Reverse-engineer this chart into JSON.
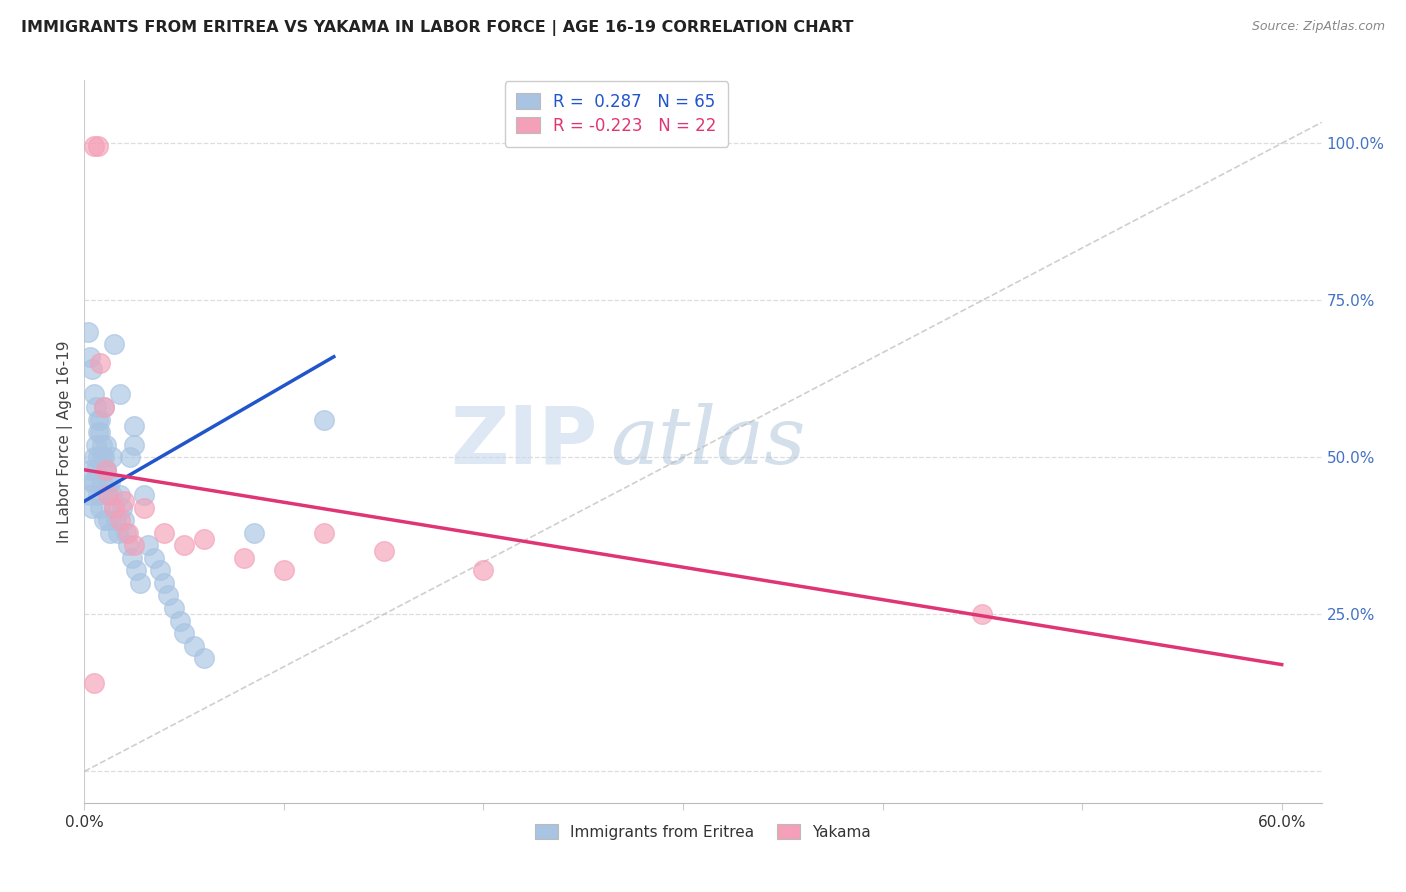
{
  "title": "IMMIGRANTS FROM ERITREA VS YAKAMA IN LABOR FORCE | AGE 16-19 CORRELATION CHART",
  "source": "Source: ZipAtlas.com",
  "ylabel": "In Labor Force | Age 16-19",
  "xlim": [
    0.0,
    0.62
  ],
  "ylim": [
    -0.05,
    1.1
  ],
  "r_eritrea": 0.287,
  "n_eritrea": 65,
  "r_yakama": -0.223,
  "n_yakama": 22,
  "color_eritrea": "#a8c4e2",
  "color_yakama": "#f4a0b8",
  "trendline_eritrea_color": "#2255cc",
  "trendline_yakama_color": "#e03575",
  "legend_label_eritrea": "Immigrants from Eritrea",
  "legend_label_yakama": "Yakama",
  "right_tick_color": "#4472c4",
  "grid_color": "#dddddd",
  "eritrea_x": [
    0.002,
    0.003,
    0.003,
    0.004,
    0.004,
    0.005,
    0.005,
    0.006,
    0.006,
    0.007,
    0.007,
    0.007,
    0.008,
    0.008,
    0.009,
    0.009,
    0.01,
    0.01,
    0.011,
    0.011,
    0.012,
    0.012,
    0.013,
    0.013,
    0.014,
    0.014,
    0.015,
    0.016,
    0.017,
    0.018,
    0.019,
    0.02,
    0.021,
    0.022,
    0.023,
    0.024,
    0.025,
    0.026,
    0.028,
    0.03,
    0.032,
    0.035,
    0.038,
    0.04,
    0.042,
    0.045,
    0.048,
    0.05,
    0.055,
    0.06,
    0.003,
    0.004,
    0.005,
    0.006,
    0.007,
    0.008,
    0.009,
    0.01,
    0.011,
    0.012,
    0.015,
    0.018,
    0.025,
    0.085,
    0.12
  ],
  "eritrea_y": [
    0.7,
    0.48,
    0.44,
    0.46,
    0.42,
    0.5,
    0.46,
    0.52,
    0.48,
    0.54,
    0.5,
    0.44,
    0.56,
    0.42,
    0.5,
    0.46,
    0.58,
    0.4,
    0.52,
    0.48,
    0.44,
    0.4,
    0.46,
    0.38,
    0.5,
    0.44,
    0.42,
    0.4,
    0.38,
    0.44,
    0.42,
    0.4,
    0.38,
    0.36,
    0.5,
    0.34,
    0.52,
    0.32,
    0.3,
    0.44,
    0.36,
    0.34,
    0.32,
    0.3,
    0.28,
    0.26,
    0.24,
    0.22,
    0.2,
    0.18,
    0.66,
    0.64,
    0.6,
    0.58,
    0.56,
    0.54,
    0.52,
    0.5,
    0.48,
    0.46,
    0.68,
    0.6,
    0.55,
    0.38,
    0.56
  ],
  "yakama_x": [
    0.005,
    0.007,
    0.008,
    0.01,
    0.011,
    0.012,
    0.015,
    0.018,
    0.02,
    0.022,
    0.025,
    0.03,
    0.04,
    0.05,
    0.06,
    0.08,
    0.1,
    0.12,
    0.15,
    0.2,
    0.45,
    0.005
  ],
  "yakama_y": [
    0.995,
    0.995,
    0.65,
    0.58,
    0.48,
    0.44,
    0.42,
    0.4,
    0.43,
    0.38,
    0.36,
    0.42,
    0.38,
    0.36,
    0.37,
    0.34,
    0.32,
    0.38,
    0.35,
    0.32,
    0.25,
    0.14
  ],
  "trendline_eritrea_x0": 0.0,
  "trendline_eritrea_x1": 0.125,
  "trendline_eritrea_y0": 0.43,
  "trendline_eritrea_y1": 0.66,
  "trendline_yakama_x0": 0.0,
  "trendline_yakama_x1": 0.6,
  "trendline_yakama_y0": 0.48,
  "trendline_yakama_y1": 0.17
}
